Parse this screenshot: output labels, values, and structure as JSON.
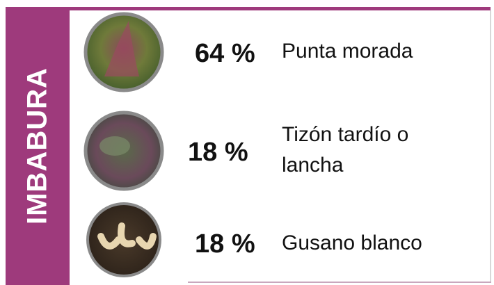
{
  "region": "IMBABURA",
  "items": [
    {
      "percent": "64 %",
      "label_lines": [
        "Punta morada"
      ]
    },
    {
      "percent": "18 %",
      "label_lines": [
        "Tizón tardío o",
        "lancha"
      ]
    },
    {
      "percent": "18 %",
      "label_lines": [
        "Gusano blanco"
      ]
    }
  ]
}
